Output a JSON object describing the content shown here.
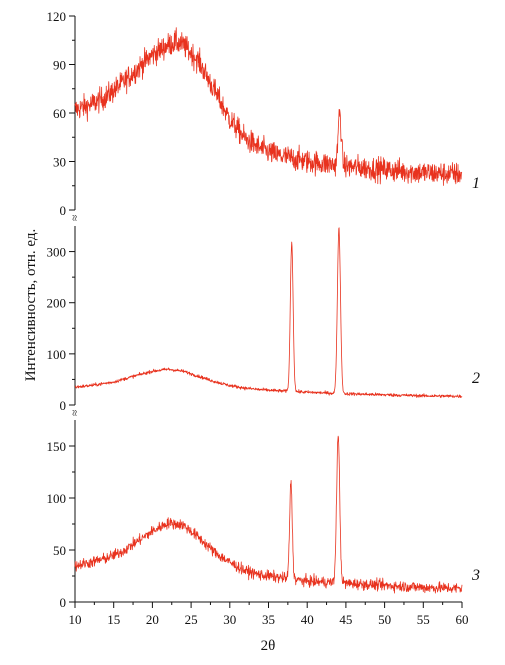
{
  "chart_data": {
    "type": "line",
    "xlabel": "2θ",
    "ylabel": "Интенсивность, отн. ед.",
    "xlim": [
      10,
      60
    ],
    "x_ticks": [
      10,
      15,
      20,
      25,
      30,
      35,
      40,
      45,
      50,
      55,
      60
    ],
    "series_color": "#e8321e",
    "axis_color": "#111111",
    "axis_break_symbol": "≈",
    "panels": [
      {
        "name": "1",
        "ylim": [
          0,
          120
        ],
        "y_ticks": [
          0,
          30,
          60,
          90,
          120
        ],
        "noise": 7,
        "baseline": [
          [
            10,
            62
          ],
          [
            12,
            65
          ],
          [
            14,
            70
          ],
          [
            16,
            78
          ],
          [
            18,
            87
          ],
          [
            20,
            96
          ],
          [
            22,
            102
          ],
          [
            23,
            104
          ],
          [
            24,
            102
          ],
          [
            26,
            92
          ],
          [
            28,
            74
          ],
          [
            30,
            56
          ],
          [
            32,
            44
          ],
          [
            34,
            38
          ],
          [
            36,
            34
          ],
          [
            40,
            30
          ],
          [
            45,
            27
          ],
          [
            50,
            25
          ],
          [
            55,
            23
          ],
          [
            60,
            22
          ]
        ],
        "peaks": [
          {
            "x": 44.2,
            "height": 60,
            "width": 0.2
          }
        ]
      },
      {
        "name": "2",
        "ylim": [
          0,
          350
        ],
        "y_ticks": [
          0,
          100,
          200,
          300
        ],
        "noise": 3,
        "baseline": [
          [
            10,
            35
          ],
          [
            12,
            38
          ],
          [
            15,
            45
          ],
          [
            18,
            58
          ],
          [
            20,
            66
          ],
          [
            22,
            70
          ],
          [
            24,
            66
          ],
          [
            26,
            56
          ],
          [
            28,
            46
          ],
          [
            30,
            38
          ],
          [
            32,
            33
          ],
          [
            34,
            30
          ],
          [
            36,
            28
          ],
          [
            40,
            25
          ],
          [
            45,
            22
          ],
          [
            50,
            20
          ],
          [
            55,
            18
          ],
          [
            60,
            17
          ]
        ],
        "peaks": [
          {
            "x": 38.0,
            "height": 318,
            "width": 0.18
          },
          {
            "x": 44.1,
            "height": 345,
            "width": 0.2
          }
        ]
      },
      {
        "name": "3",
        "ylim": [
          0,
          175
        ],
        "y_ticks": [
          0,
          50,
          100,
          150
        ],
        "noise": 5,
        "baseline": [
          [
            10,
            35
          ],
          [
            12,
            38
          ],
          [
            14,
            42
          ],
          [
            16,
            48
          ],
          [
            18,
            58
          ],
          [
            20,
            68
          ],
          [
            22,
            76
          ],
          [
            24,
            74
          ],
          [
            26,
            62
          ],
          [
            28,
            48
          ],
          [
            30,
            38
          ],
          [
            32,
            30
          ],
          [
            34,
            26
          ],
          [
            36,
            24
          ],
          [
            38,
            22
          ],
          [
            40,
            20
          ],
          [
            45,
            18
          ],
          [
            50,
            16
          ],
          [
            55,
            14
          ],
          [
            60,
            13
          ]
        ],
        "peaks": [
          {
            "x": 37.9,
            "height": 115,
            "width": 0.17
          },
          {
            "x": 44.0,
            "height": 160,
            "width": 0.2
          }
        ]
      }
    ]
  }
}
